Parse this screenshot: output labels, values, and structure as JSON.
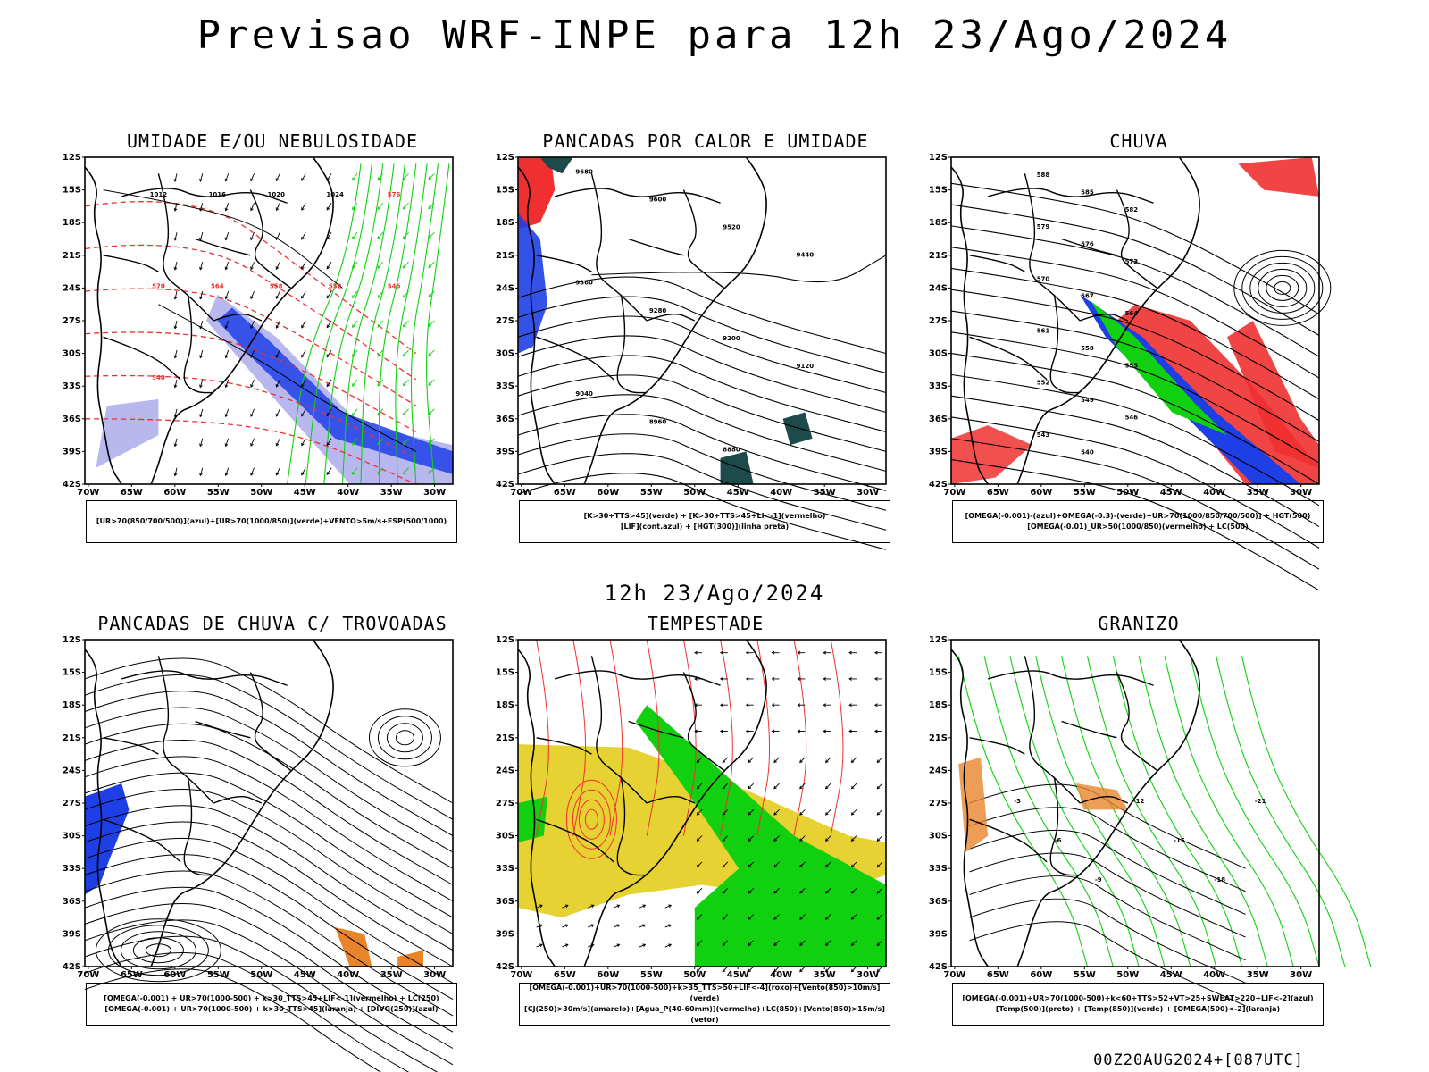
{
  "title": "Previsao WRF-INPE  para 12h 23/Ago/2024",
  "subtitle": "12h 23/Ago/2024",
  "footer": "00Z20AUG2024+[087UTC]",
  "axes": {
    "lat_labels": [
      "12S",
      "15S",
      "18S",
      "21S",
      "24S",
      "27S",
      "30S",
      "33S",
      "36S",
      "39S",
      "42S"
    ],
    "lon_labels": [
      "70W",
      "65W",
      "60W",
      "55W",
      "50W",
      "45W",
      "40W",
      "35W",
      "30W"
    ]
  },
  "colors": {
    "blue": "#1f3fe6",
    "lightblue": "#9a9ae8",
    "green": "#10d010",
    "red": "#f03030",
    "yellow": "#e6d232",
    "orange": "#e8852a",
    "darkteal": "#1d4a4a",
    "purple": "#8a2be2"
  },
  "panels": [
    {
      "id": "umidade",
      "title": "UMIDADE E/OU NEBULOSIDADE",
      "legend": [
        "[UR>70(850/700/500)](azul)+[UR>70(1000/850)](verde)+VENTO>5m/s+ESP(500/1000)"
      ],
      "contour_labels": [
        "1012",
        "1016",
        "1020",
        "1024",
        "576",
        "570",
        "564",
        "558",
        "552",
        "546",
        "540"
      ]
    },
    {
      "id": "pancadas_calor",
      "title": "PANCADAS POR CALOR E UMIDADE",
      "legend": [
        "[K>30+TTS>45](verde) + [K>30+TTS>45+LI<-1](vermelho)",
        "[LIF](cont.azul) + [HGT(300)](linha preta)"
      ],
      "contour_labels": [
        "9680",
        "9600",
        "9520",
        "9440",
        "9360",
        "9280",
        "9200",
        "9120",
        "9040",
        "8960",
        "8880"
      ]
    },
    {
      "id": "chuva",
      "title": "CHUVA",
      "legend": [
        "[OMEGA(-0.001)-(azul)+OMEGA(-0.3)-(verde)+UR>70(1000/850/700/500)] + HGT(500)",
        "[OMEGA(-0.01)_UR>50(1000/850)(vermelho) + LC(500)"
      ],
      "contour_labels": [
        "588",
        "585",
        "582",
        "579",
        "576",
        "573",
        "570",
        "567",
        "564",
        "561",
        "558",
        "555",
        "552",
        "549",
        "546",
        "543",
        "540"
      ]
    },
    {
      "id": "pancadas_trovoadas",
      "title": "PANCADAS DE CHUVA C/ TROVOADAS",
      "legend": [
        "[OMEGA(-0.001) + UR>70(1000-500) + k>30_TTS>45+LIF<-1](vermelho) + LC(250)",
        "[OMEGA(-0.001) + UR>70(1000-500) + k>30_TTS>45](laranja) + [DIVG(250)](azul)"
      ]
    },
    {
      "id": "tempestade",
      "title": "TEMPESTADE",
      "legend": [
        "[OMEGA(-0.001)+UR>70(1000-500)+k>35_TTS>50+LIF<-4](roxo)+[Vento(850)>10m/s](verde)",
        "[CJ(250)>30m/s](amarelo)+[Agua_P(40-60mm)](vermelho)+LC(850)+[Vento(850)>15m/s](vetor)"
      ]
    },
    {
      "id": "granizo",
      "title": "GRANIZO",
      "legend": [
        "[OMEGA(-0.001)+UR>70(1000-500)+k<60+TTS>52+VT>25+SWEAT>220+LIF<-2](azul)",
        "[Temp(500)](preto) + [Temp(850)](verde) + [OMEGA(500)<-2](laranja)"
      ],
      "contour_labels": [
        "-3",
        "-6",
        "-9",
        "-12",
        "-15",
        "-18",
        "-21"
      ]
    }
  ]
}
